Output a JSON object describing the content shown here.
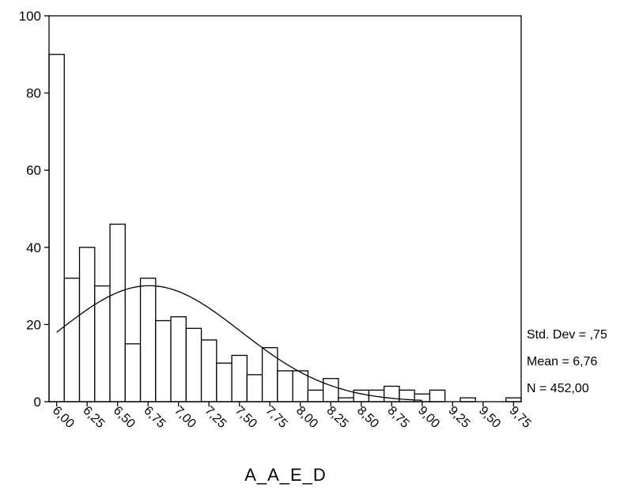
{
  "chart_data": {
    "type": "bar",
    "x_bin_width": 0.125,
    "x_ticks": [
      "6,00",
      "6,25",
      "6,50",
      "6,75",
      "7,00",
      "7,25",
      "7,50",
      "7,75",
      "8,00",
      "8,25",
      "8,50",
      "8,75",
      "9,00",
      "9,25",
      "9,50",
      "9,75"
    ],
    "bins": [
      {
        "x": 6.0,
        "count": 90
      },
      {
        "x": 6.125,
        "count": 32
      },
      {
        "x": 6.25,
        "count": 40
      },
      {
        "x": 6.375,
        "count": 30
      },
      {
        "x": 6.5,
        "count": 46
      },
      {
        "x": 6.625,
        "count": 15
      },
      {
        "x": 6.75,
        "count": 32
      },
      {
        "x": 6.875,
        "count": 21
      },
      {
        "x": 7.0,
        "count": 22
      },
      {
        "x": 7.125,
        "count": 19
      },
      {
        "x": 7.25,
        "count": 16
      },
      {
        "x": 7.375,
        "count": 10
      },
      {
        "x": 7.5,
        "count": 12
      },
      {
        "x": 7.625,
        "count": 7
      },
      {
        "x": 7.75,
        "count": 14
      },
      {
        "x": 7.875,
        "count": 8
      },
      {
        "x": 8.0,
        "count": 8
      },
      {
        "x": 8.125,
        "count": 3
      },
      {
        "x": 8.25,
        "count": 6
      },
      {
        "x": 8.375,
        "count": 1
      },
      {
        "x": 8.5,
        "count": 3
      },
      {
        "x": 8.625,
        "count": 3
      },
      {
        "x": 8.75,
        "count": 4
      },
      {
        "x": 8.875,
        "count": 3
      },
      {
        "x": 9.0,
        "count": 2
      },
      {
        "x": 9.125,
        "count": 3
      },
      {
        "x": 9.25,
        "count": 0
      },
      {
        "x": 9.375,
        "count": 1
      },
      {
        "x": 9.5,
        "count": 0
      },
      {
        "x": 9.625,
        "count": 0
      },
      {
        "x": 9.75,
        "count": 1
      }
    ],
    "normal_curve": {
      "mean": 6.76,
      "std_dev": 0.75,
      "n": 452
    },
    "xlabel": "A_A_E_D",
    "ylabel": "",
    "ylim": [
      0,
      100
    ],
    "y_ticks": [
      "0",
      "20",
      "40",
      "60",
      "80",
      "100"
    ],
    "xlim": [
      5.9375,
      9.8125
    ],
    "grid": false,
    "stats": {
      "std_dev": "Std. Dev = ,75",
      "mean": "Mean = 6,76",
      "n": "N = 452,00"
    }
  }
}
